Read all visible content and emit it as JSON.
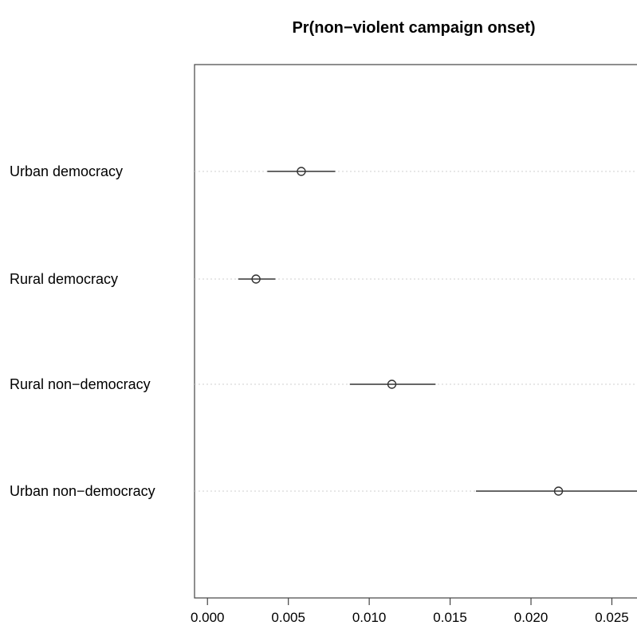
{
  "chart_data": {
    "type": "scatter",
    "title": "Pr(non−violent campaign onset)",
    "xlabel": "",
    "ylabel": "",
    "xlim": [
      -0.0008,
      0.0268
    ],
    "x_ticks": [
      "0.000",
      "0.005",
      "0.010",
      "0.015",
      "0.020",
      "0.025"
    ],
    "x_tick_values": [
      0.0,
      0.005,
      0.01,
      0.015,
      0.02,
      0.025
    ],
    "grid": false,
    "points": [
      {
        "label": "Urban democracy",
        "estimate": 0.0058,
        "lower": 0.0037,
        "upper": 0.0079
      },
      {
        "label": "Rural democracy",
        "estimate": 0.003,
        "lower": 0.0019,
        "upper": 0.0042
      },
      {
        "label": "Rural non−democracy",
        "estimate": 0.0114,
        "lower": 0.0088,
        "upper": 0.0141
      },
      {
        "label": "Urban non−democracy",
        "estimate": 0.0217,
        "lower": 0.0166,
        "upper": 0.0268
      }
    ]
  }
}
